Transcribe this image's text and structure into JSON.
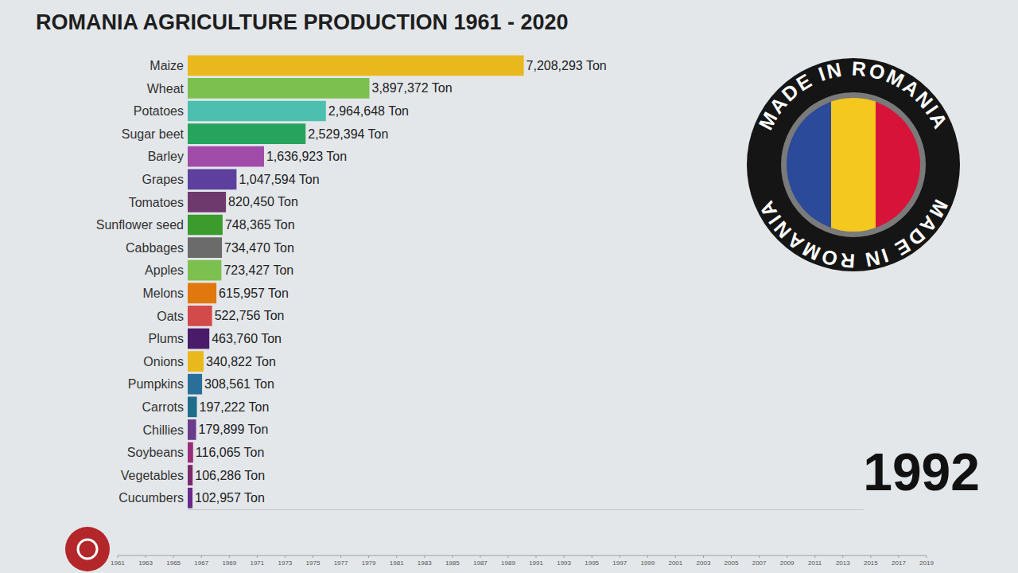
{
  "chart_data": {
    "type": "bar",
    "orientation": "horizontal",
    "title": "ROMANIA AGRICULTURE PRODUCTION 1961 - 2020",
    "categories": [
      "Maize",
      "Wheat",
      "Potatoes",
      "Sugar beet",
      "Barley",
      "Grapes",
      "Tomatoes",
      "Sunflower seed",
      "Cabbages",
      "Apples",
      "Melons",
      "Oats",
      "Plums",
      "Onions",
      "Pumpkins",
      "Carrots",
      "Chillies",
      "Soybeans",
      "Vegetables",
      "Cucumbers"
    ],
    "values": [
      7208293,
      3897372,
      2964648,
      2529394,
      1636923,
      1047594,
      820450,
      748365,
      734470,
      723427,
      615957,
      522756,
      463760,
      340822,
      308561,
      197222,
      179899,
      116065,
      106286,
      102957
    ],
    "value_labels": [
      "7,208,293 Ton",
      "3,897,372 Ton",
      "2,964,648 Ton",
      "2,529,394 Ton",
      "1,636,923 Ton",
      "1,047,594 Ton",
      "820,450 Ton",
      "748,365 Ton",
      "734,470 Ton",
      "723,427 Ton",
      "615,957 Ton",
      "522,756 Ton",
      "463,760 Ton",
      "340,822 Ton",
      "308,561 Ton",
      "197,222 Ton",
      "179,899 Ton",
      "116,065 Ton",
      "106,286 Ton",
      "102,957 Ton"
    ],
    "colors": [
      "#e9b81c",
      "#7cc04f",
      "#4cbfae",
      "#26a35c",
      "#a04ca8",
      "#5d3f9e",
      "#6e3a6e",
      "#3b9b2c",
      "#6b6b6b",
      "#7cc04f",
      "#e0780f",
      "#d34a4a",
      "#4b1b6b",
      "#e9b81c",
      "#2a6f99",
      "#1f6c8a",
      "#6a3a8c",
      "#9b2b7b",
      "#7a2a6a",
      "#6a2a8a"
    ],
    "xlim": [
      0,
      14500000
    ],
    "xticks": [],
    "data_labels": true,
    "tick_labels": "y",
    "grid": false
  },
  "badge": {
    "text": "MADE IN ROMANIA"
  },
  "year": "1992",
  "timeline": {
    "xlim": [
      1961,
      2019
    ],
    "xticks": [
      1961,
      1963,
      1965,
      1967,
      1969,
      1971,
      1973,
      1975,
      1977,
      1979,
      1981,
      1983,
      1985,
      1987,
      1989,
      1991,
      1993,
      1995,
      1997,
      1999,
      2001,
      2003,
      2005,
      2007,
      2009,
      2011,
      2013,
      2015,
      2017,
      2019
    ]
  }
}
